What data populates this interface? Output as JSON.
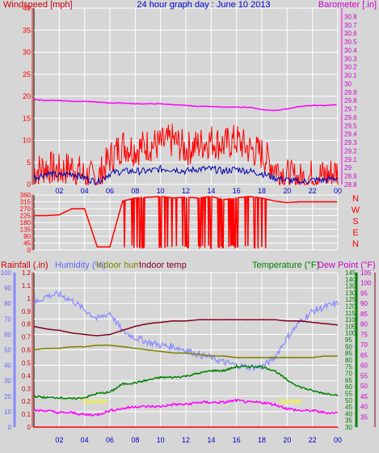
{
  "header": {
    "left_title": "Windspeed [mph]",
    "center_title": "24 hour graph day : June 10 2013",
    "right_title": "Barometer [.in]"
  },
  "bottom_header": {
    "rainfall": "Rainfall (.in)",
    "humidity": "Humidity (%)",
    "indoor_hum": "Indoor hum",
    "indoor_temp": "Indoor temp",
    "temperature": "Temperature (°F)",
    "dew_point": "Dew Point (°F)"
  },
  "colors": {
    "background": "#d6d6d6",
    "wind_speed": "#ff0000",
    "wind_avg": "#0000aa",
    "barometer": "#ff00ff",
    "grid": "#ffffff",
    "rain": "#ff0000",
    "humidity": "#8888ff",
    "indoor_hum": "#808000",
    "indoor_temp": "#800020",
    "temperature": "#008000",
    "dew_point": "#ff00ff",
    "text_rain": "#cc0000",
    "text_humidity": "#6666ff",
    "text_dew": "#cc00cc",
    "highlight": "#ffff00"
  },
  "time_ticks": [
    "02",
    "04",
    "06",
    "08",
    "10",
    "12",
    "14",
    "16",
    "18",
    "20",
    "22",
    "00"
  ],
  "chart_data": [
    {
      "type": "line",
      "title": "24 hour graph day : June 10 2013",
      "xlabel": "",
      "ylabel": "Windspeed [mph]",
      "y2label": "Barometer [.in]",
      "ylim": [
        0,
        40
      ],
      "y2lim": [
        28.8,
        30.9
      ],
      "y_ticks": [
        "0",
        "5",
        "10",
        "15",
        "20",
        "25",
        "30",
        "35",
        "40"
      ],
      "y2_ticks": [
        "28.8",
        "28.9",
        "29",
        "29.1",
        "29.2",
        "29.3",
        "29.4",
        "29.5",
        "29.6",
        "29.7",
        "29.8",
        "29.9",
        "30",
        "30.1",
        "30.2",
        "30.3",
        "30.4",
        "30.5",
        "30.6",
        "30.7",
        "30.8"
      ],
      "x_hours": [
        0,
        1,
        2,
        3,
        4,
        5,
        6,
        7,
        8,
        9,
        10,
        11,
        12,
        13,
        14,
        15,
        16,
        17,
        18,
        19,
        20,
        21,
        22,
        23,
        24
      ],
      "series": [
        {
          "name": "Windspeed",
          "axis": "left",
          "values": [
            3,
            4,
            3,
            4,
            2,
            1,
            6,
            9,
            8,
            9,
            9,
            10,
            8,
            9,
            10,
            9,
            10,
            8,
            7,
            4,
            2,
            1,
            2,
            2,
            3
          ]
        },
        {
          "name": "Average wind",
          "axis": "left",
          "values": [
            1.5,
            2.5,
            2,
            2.5,
            1.5,
            0.5,
            2.5,
            3,
            3,
            3,
            3.5,
            3.5,
            3,
            3.5,
            3.5,
            3,
            3.5,
            3,
            2.5,
            1.5,
            1,
            0.5,
            1,
            1,
            1.5
          ]
        },
        {
          "name": "Barometer",
          "axis": "right",
          "values": [
            29.81,
            29.8,
            29.8,
            29.79,
            29.79,
            29.78,
            29.77,
            29.77,
            29.76,
            29.76,
            29.76,
            29.75,
            29.74,
            29.73,
            29.73,
            29.72,
            29.72,
            29.72,
            29.69,
            29.68,
            29.7,
            29.73,
            29.74,
            29.74,
            29.75
          ]
        }
      ],
      "grid": true
    },
    {
      "type": "line",
      "title": "",
      "ylabel": "Wind direction",
      "ylim": [
        0,
        360
      ],
      "y_ticks": [
        "0",
        "45",
        "90",
        "135",
        "180",
        "225",
        "270",
        "315",
        "360"
      ],
      "compass": [
        "N",
        "W",
        "S",
        "E",
        "N"
      ],
      "x_hours": [
        0,
        1,
        2,
        3,
        4,
        5,
        6,
        7,
        8,
        9,
        10,
        11,
        12,
        13,
        14,
        15,
        16,
        17,
        18,
        19,
        20,
        21,
        22,
        23,
        24
      ],
      "series": [
        {
          "name": "Direction",
          "values": [
            225,
            225,
            230,
            270,
            270,
            20,
            20,
            320,
            340,
            345,
            350,
            340,
            345,
            340,
            350,
            330,
            340,
            350,
            340,
            320,
            310,
            315,
            315,
            315,
            315
          ]
        }
      ],
      "grid": true
    },
    {
      "type": "line",
      "title": "",
      "y_left_outer_label": "Humidity (%)",
      "y_left_outer_lim": [
        0,
        100
      ],
      "y_left_outer_ticks": [
        "0",
        "10",
        "20",
        "30",
        "40",
        "50",
        "60",
        "70",
        "80",
        "90",
        "100"
      ],
      "y_left_inner_label": "Rainfall (.in)",
      "y_left_inner_lim": [
        0,
        1.2
      ],
      "y_left_inner_ticks": [
        "0",
        "0.1",
        "0.2",
        "0.3",
        "0.4",
        "0.5",
        "0.6",
        "0.7",
        "0.8",
        "0.9",
        "1",
        "1.1",
        "1.2"
      ],
      "y_right_inner_label": "Temperature (°F)",
      "y_right_inner_lim": [
        30,
        145
      ],
      "y_right_inner_ticks": [
        "30",
        "35",
        "40",
        "45",
        "50",
        "55",
        "60",
        "65",
        "70",
        "75",
        "80",
        "85",
        "90",
        "95",
        "100",
        "105",
        "110",
        "115",
        "120",
        "125",
        "130",
        "135",
        "140",
        "145"
      ],
      "y_right_outer_label": "Dew Point (°F)",
      "y_right_outer_lim": [
        30,
        105
      ],
      "y_right_outer_ticks": [
        "35",
        "40",
        "45",
        "50",
        "55",
        "60",
        "65",
        "70",
        "75",
        "80",
        "85",
        "90",
        "95",
        "100",
        "105"
      ],
      "annotations": [
        "Sunrise",
        "Sunset"
      ],
      "x_hours": [
        0,
        1,
        2,
        3,
        4,
        5,
        6,
        7,
        8,
        9,
        10,
        11,
        12,
        13,
        14,
        15,
        16,
        17,
        18,
        19,
        20,
        21,
        22,
        23,
        24
      ],
      "series": [
        {
          "name": "Humidity",
          "axis": "left_outer",
          "values": [
            80,
            85,
            86,
            82,
            76,
            70,
            74,
            62,
            58,
            55,
            53,
            52,
            50,
            47,
            45,
            42,
            40,
            39,
            39,
            45,
            58,
            68,
            75,
            78,
            80
          ]
        },
        {
          "name": "Indoor hum",
          "axis": "left_outer",
          "values": [
            50,
            51,
            51,
            52,
            52,
            53,
            53,
            52,
            51,
            50,
            49,
            48,
            48,
            47,
            46,
            46,
            45,
            45,
            45,
            45,
            45,
            45,
            45,
            46,
            46
          ]
        },
        {
          "name": "Indoor temp",
          "axis": "right_inner",
          "values": [
            105,
            103,
            102,
            100,
            99,
            98,
            99,
            102,
            105,
            107,
            108,
            109,
            109,
            110,
            110,
            110,
            110,
            110,
            110,
            110,
            109,
            109,
            108,
            107,
            106
          ]
        },
        {
          "name": "Temperature",
          "axis": "right_inner",
          "values": [
            53,
            52,
            52,
            51,
            52,
            55,
            56,
            62,
            63,
            65,
            67,
            67,
            68,
            70,
            72,
            72,
            75,
            75,
            75,
            72,
            65,
            60,
            57,
            55,
            54
          ]
        },
        {
          "name": "Dew Point",
          "axis": "right_outer",
          "values": [
            38,
            38,
            37,
            37,
            36,
            36,
            38,
            39,
            40,
            40,
            40,
            41,
            41,
            42,
            42,
            42,
            43,
            42,
            42,
            41,
            39,
            38,
            38,
            37,
            37
          ]
        },
        {
          "name": "Rainfall",
          "axis": "left_inner",
          "values": [
            0,
            0,
            0,
            0,
            0,
            0,
            0,
            0,
            0,
            0,
            0,
            0,
            0,
            0,
            0,
            0,
            0,
            0,
            0,
            0,
            0,
            0,
            0,
            0,
            0
          ]
        }
      ],
      "grid": true
    }
  ]
}
